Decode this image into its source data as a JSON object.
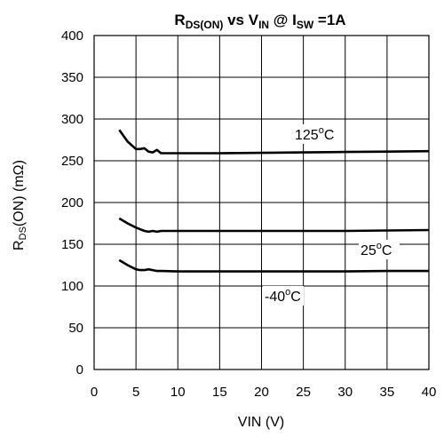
{
  "chart_data": {
    "type": "line",
    "title": {
      "main": "R",
      "main_sub": "DS(ON)",
      "mid": " vs V",
      "mid_sub": "IN",
      "tail": " @ I",
      "tail_sub": "SW",
      "end": " =1A"
    },
    "xlabel": "VIN (V)",
    "ylabel": {
      "main": "R",
      "sub": "DS",
      "rest": "(ON) (mΩ)"
    },
    "xlim": [
      0,
      40
    ],
    "ylim": [
      0,
      400
    ],
    "xticks": [
      0,
      5,
      10,
      15,
      20,
      25,
      30,
      35,
      40
    ],
    "yticks": [
      0,
      50,
      100,
      150,
      200,
      250,
      300,
      350,
      400
    ],
    "grid": true,
    "series": [
      {
        "name": "125°C",
        "label": {
          "num": "125",
          "sup": "o",
          "unit": "C"
        },
        "x": [
          3,
          4,
          5,
          5.5,
          6,
          6.5,
          7,
          7.5,
          8,
          10,
          15,
          20,
          25,
          30,
          35,
          40
        ],
        "y": [
          287,
          273,
          264,
          264,
          265,
          261,
          260,
          263,
          259,
          259,
          259,
          259.5,
          260,
          260.5,
          261,
          261.5
        ]
      },
      {
        "name": "25°C",
        "label": {
          "num": "25",
          "sup": "o",
          "unit": "C"
        },
        "x": [
          3,
          4,
          5,
          5.5,
          6,
          6.5,
          7,
          7.5,
          8,
          10,
          15,
          20,
          25,
          30,
          35,
          40
        ],
        "y": [
          181,
          175,
          170,
          168,
          166,
          165,
          166,
          165,
          166,
          166,
          166,
          166,
          166,
          166,
          166.5,
          167
        ]
      },
      {
        "name": "-40°C",
        "label": {
          "num": "-40",
          "sup": "o",
          "unit": "C"
        },
        "x": [
          3,
          4,
          5,
          5.5,
          6,
          6.5,
          7,
          7.5,
          8,
          10,
          15,
          20,
          25,
          30,
          35,
          40
        ],
        "y": [
          131,
          125,
          120,
          119,
          119,
          120,
          119,
          118,
          118,
          117.5,
          117.5,
          117.5,
          117.5,
          117.5,
          118,
          118
        ]
      }
    ]
  }
}
